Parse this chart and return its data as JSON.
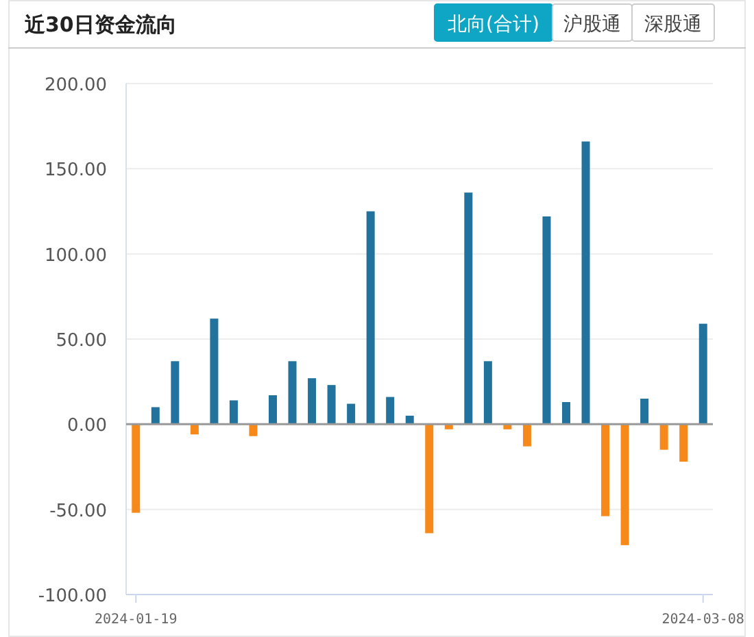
{
  "chart_data": {
    "type": "bar",
    "title": "近30日资金流向",
    "annotations": [
      "北向(合计)",
      "沪股通",
      "深股通"
    ],
    "categories": [
      "2024-01-19",
      null,
      null,
      null,
      null,
      null,
      null,
      null,
      null,
      null,
      null,
      null,
      null,
      null,
      null,
      null,
      null,
      null,
      null,
      null,
      null,
      null,
      null,
      null,
      null,
      null,
      null,
      null,
      null,
      "2024-03-08"
    ],
    "values": [
      -52,
      10,
      37,
      -6,
      62,
      14,
      -7,
      17,
      37,
      27,
      23,
      12,
      125,
      16,
      5,
      -64,
      -3,
      136,
      37,
      -3,
      -13,
      122,
      13,
      166,
      -54,
      -71,
      15,
      -15,
      -22,
      59
    ],
    "colors": [
      "#f7891a",
      "#21739d",
      "#21739d",
      "#f7891a",
      "#21739d",
      "#21739d",
      "#f7891a",
      "#21739d",
      "#21739d",
      "#21739d",
      "#21739d",
      "#21739d",
      "#21739d",
      "#21739d",
      "#21739d",
      "#f7891a",
      "#f7891a",
      "#21739d",
      "#21739d",
      "#f7891a",
      "#f7891a",
      "#21739d",
      "#21739d",
      "#21739d",
      "#f7891a",
      "#f7891a",
      "#21739d",
      "#f7891a",
      "#f7891a",
      "#21739d"
    ],
    "ylim": [
      -100,
      200
    ],
    "yticks": [
      {
        "value": -100,
        "label": "-100.00"
      },
      {
        "value": -50,
        "label": "-50.00"
      },
      {
        "value": 0,
        "label": "0.00"
      },
      {
        "value": 50,
        "label": "50.00"
      },
      {
        "value": 100,
        "label": "100.00"
      },
      {
        "value": 150,
        "label": "150.00"
      },
      {
        "value": 200,
        "label": "200.00"
      }
    ],
    "grid": "y"
  }
}
